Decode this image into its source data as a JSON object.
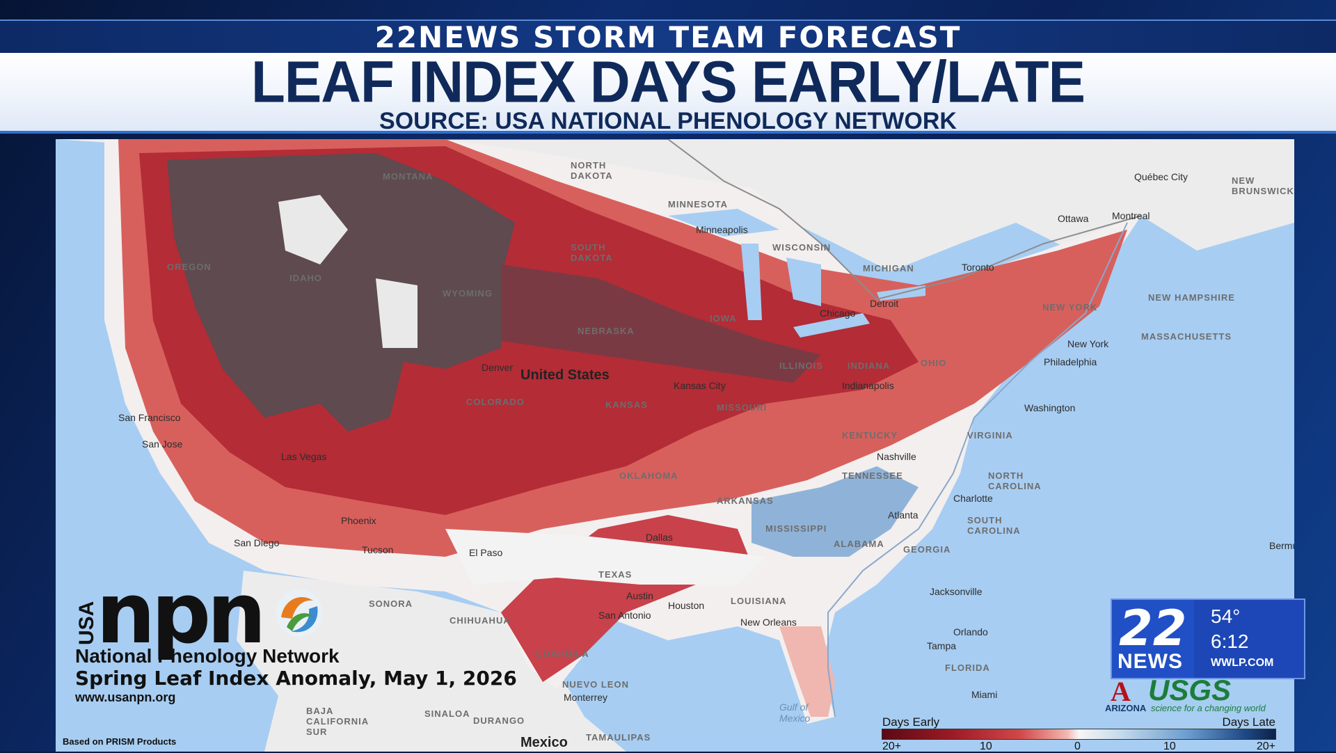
{
  "header": {
    "network_line": "22NEWS STORM TEAM FORECAST",
    "title": "LEAF INDEX DAYS EARLY/LATE",
    "source": "SOURCE: USA NATIONAL PHENOLOGY NETWORK"
  },
  "map": {
    "country_label": "United States",
    "mexico_label": "Mexico",
    "state_labels": [
      "NORTH DAKOTA",
      "MINNESOTA",
      "SOUTH DAKOTA",
      "WISCONSIN",
      "MICHIGAN",
      "NEBRASKA",
      "IOWA",
      "ILLINOIS",
      "INDIANA",
      "OHIO",
      "KANSAS",
      "MISSOURI",
      "OKLAHOMA",
      "ARKANSAS",
      "TENNESSEE",
      "KENTUCKY",
      "VIRGINIA",
      "NORTH CAROLINA",
      "SOUTH CAROLINA",
      "MISSISSIPPI",
      "ALABAMA",
      "GEORGIA",
      "LOUISIANA",
      "TEXAS",
      "FLORIDA",
      "NEW YORK",
      "MASSACHUSETTS",
      "NEW HAMPSHIRE",
      "MONTANA",
      "OREGON",
      "IDAHO",
      "WYOMING",
      "COLORADO",
      "NEW BRUNSWICK",
      "SONORA",
      "CHIHUAHUA",
      "COAHUILA",
      "NUEVO LEON",
      "TAMAULIPAS",
      "BAJA CALIFORNIA SUR",
      "SINALOA",
      "DURANGO"
    ],
    "city_labels": [
      "Minneapolis",
      "Chicago",
      "Detroit",
      "Toronto",
      "Ottawa",
      "Montreal",
      "Québec City",
      "Denver",
      "Kansas City",
      "Indianapolis",
      "Nashville",
      "Charlotte",
      "Atlanta",
      "Dallas",
      "Austin",
      "San Antonio",
      "Houston",
      "New Orleans",
      "Jacksonville",
      "Orlando",
      "Tampa",
      "Miami",
      "Philadelphia",
      "New York",
      "Washington",
      "El Paso",
      "Phoenix",
      "Tucson",
      "San Francisco",
      "San Jose",
      "Las Vegas",
      "San Diego",
      "Monterrey",
      "Bermuda"
    ],
    "water_labels": [
      "Gulf of Mexico"
    ]
  },
  "npn": {
    "usa": "USA",
    "wordmark": "npn",
    "network": "National Phenology Network",
    "anomaly": "Spring Leaf Index Anomaly, May 1, 2026",
    "url": "www.usanpn.org",
    "prism": "Based on PRISM Products"
  },
  "legend": {
    "left_label": "Days Early",
    "right_label": "Days Late",
    "ticks": [
      "20+",
      "10",
      "0",
      "10",
      "20+"
    ]
  },
  "station": {
    "logo_num": "22",
    "logo_word": "NEWS",
    "temp": "54°",
    "time": "6:12",
    "site": "WWLP.COM"
  },
  "partners": {
    "university": "ARIZONA",
    "usgs": "USGS",
    "usgs_tag": "science for a changing world"
  },
  "colors": {
    "very_early": "#5e4a4f",
    "early": "#b32c36",
    "mild_early": "#e98a86",
    "normal": "#f3f3f3",
    "late": "#8fb3d8",
    "water": "#a7cdf2"
  }
}
